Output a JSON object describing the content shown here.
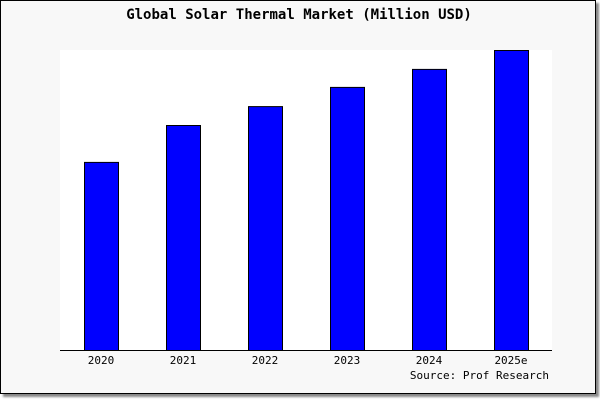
{
  "chart_data": {
    "type": "bar",
    "title": "Global Solar Thermal Market (Million USD)",
    "categories": [
      "2020",
      "2021",
      "2022",
      "2023",
      "2024",
      "2025e"
    ],
    "values": [
      62.7,
      75.0,
      81.3,
      87.7,
      93.7,
      100
    ],
    "ylim": [
      0,
      100
    ],
    "xlabel": "",
    "ylabel": "",
    "grid": false,
    "bar_color": "#0000ff",
    "plot_background": "#ffffff",
    "page_background": "#f8f8f8",
    "source": "Source: Prof Research"
  }
}
